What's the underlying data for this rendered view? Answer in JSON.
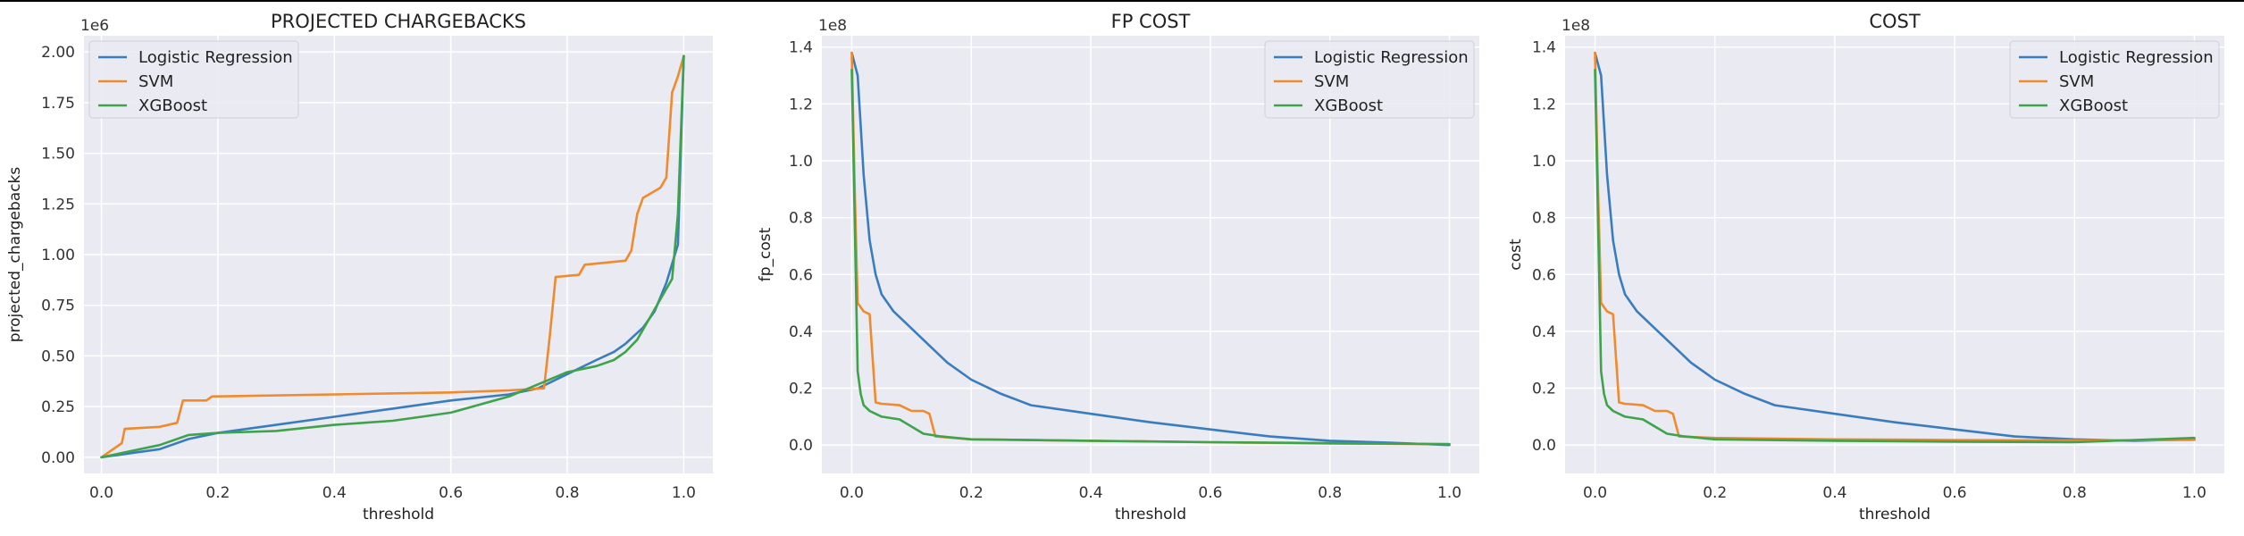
{
  "chart_data": [
    {
      "type": "line",
      "title": "PROJECTED CHARGEBACKS",
      "xlabel": "threshold",
      "ylabel": "projected_chargebacks",
      "offset_text": "1e6",
      "xlim": [
        -0.03,
        1.05
      ],
      "ylim": [
        -0.08,
        2.08
      ],
      "xticks": [
        0.0,
        0.2,
        0.4,
        0.6,
        0.8,
        1.0
      ],
      "xtick_labels": [
        "0.0",
        "0.2",
        "0.4",
        "0.6",
        "0.8",
        "1.0"
      ],
      "yticks": [
        0.0,
        0.25,
        0.5,
        0.75,
        1.0,
        1.25,
        1.5,
        1.75,
        2.0
      ],
      "ytick_labels": [
        "0.00",
        "0.25",
        "0.50",
        "0.75",
        "1.00",
        "1.25",
        "1.50",
        "1.75",
        "2.00"
      ],
      "grid": true,
      "legend_position": "top-left",
      "series": [
        {
          "name": "Logistic Regression",
          "color": "#3a7dbf",
          "x": [
            0,
            0.05,
            0.1,
            0.15,
            0.2,
            0.3,
            0.4,
            0.5,
            0.6,
            0.7,
            0.75,
            0.8,
            0.85,
            0.88,
            0.9,
            0.93,
            0.95,
            0.97,
            0.99,
            1.0
          ],
          "y": [
            0.0,
            0.02,
            0.04,
            0.09,
            0.12,
            0.16,
            0.2,
            0.24,
            0.28,
            0.31,
            0.34,
            0.41,
            0.48,
            0.52,
            0.56,
            0.64,
            0.72,
            0.86,
            1.05,
            1.98
          ]
        },
        {
          "name": "SVM",
          "color": "#f08a2c",
          "x": [
            0,
            0.02,
            0.035,
            0.04,
            0.1,
            0.13,
            0.14,
            0.18,
            0.19,
            0.4,
            0.6,
            0.7,
            0.76,
            0.77,
            0.78,
            0.82,
            0.83,
            0.9,
            0.91,
            0.92,
            0.93,
            0.96,
            0.97,
            0.98,
            0.99,
            1.0
          ],
          "y": [
            0.0,
            0.04,
            0.07,
            0.14,
            0.15,
            0.17,
            0.28,
            0.28,
            0.3,
            0.31,
            0.32,
            0.33,
            0.34,
            0.6,
            0.89,
            0.9,
            0.95,
            0.97,
            1.02,
            1.2,
            1.28,
            1.33,
            1.38,
            1.8,
            1.88,
            1.98
          ]
        },
        {
          "name": "XGBoost",
          "color": "#3ea34a",
          "x": [
            0,
            0.05,
            0.1,
            0.15,
            0.2,
            0.3,
            0.4,
            0.45,
            0.5,
            0.55,
            0.6,
            0.7,
            0.8,
            0.85,
            0.88,
            0.9,
            0.92,
            0.94,
            0.96,
            0.98,
            0.99,
            1.0
          ],
          "y": [
            0.0,
            0.03,
            0.06,
            0.11,
            0.12,
            0.13,
            0.16,
            0.17,
            0.18,
            0.2,
            0.22,
            0.3,
            0.42,
            0.45,
            0.48,
            0.52,
            0.58,
            0.68,
            0.78,
            0.88,
            1.2,
            1.98
          ]
        }
      ]
    },
    {
      "type": "line",
      "title": "FP COST",
      "xlabel": "threshold",
      "ylabel": "fp_cost",
      "offset_text": "1e8",
      "xlim": [
        -0.05,
        1.05
      ],
      "ylim": [
        -0.1,
        1.44
      ],
      "xticks": [
        0.0,
        0.2,
        0.4,
        0.6,
        0.8,
        1.0
      ],
      "xtick_labels": [
        "0.0",
        "0.2",
        "0.4",
        "0.6",
        "0.8",
        "1.0"
      ],
      "yticks": [
        0.0,
        0.2,
        0.4,
        0.6,
        0.8,
        1.0,
        1.2,
        1.4
      ],
      "ytick_labels": [
        "0.0",
        "0.2",
        "0.4",
        "0.6",
        "0.8",
        "1.0",
        "1.2",
        "1.4"
      ],
      "grid": true,
      "legend_position": "top-right",
      "series": [
        {
          "name": "Logistic Regression",
          "color": "#3a7dbf",
          "x": [
            0,
            0.01,
            0.02,
            0.03,
            0.04,
            0.05,
            0.07,
            0.1,
            0.13,
            0.16,
            0.2,
            0.25,
            0.3,
            0.4,
            0.5,
            0.6,
            0.7,
            0.8,
            0.9,
            1.0
          ],
          "y": [
            1.38,
            1.3,
            0.95,
            0.72,
            0.6,
            0.53,
            0.47,
            0.41,
            0.35,
            0.29,
            0.23,
            0.18,
            0.14,
            0.11,
            0.08,
            0.055,
            0.03,
            0.015,
            0.008,
            0.0
          ]
        },
        {
          "name": "SVM",
          "color": "#f08a2c",
          "x": [
            0,
            0.005,
            0.01,
            0.02,
            0.03,
            0.04,
            0.05,
            0.08,
            0.1,
            0.12,
            0.13,
            0.14,
            0.2,
            0.4,
            0.6,
            0.8,
            1.0
          ],
          "y": [
            1.38,
            0.9,
            0.5,
            0.47,
            0.46,
            0.15,
            0.145,
            0.14,
            0.12,
            0.12,
            0.11,
            0.03,
            0.02,
            0.015,
            0.01,
            0.005,
            0.003
          ]
        },
        {
          "name": "XGBoost",
          "color": "#3ea34a",
          "x": [
            0,
            0.01,
            0.015,
            0.02,
            0.03,
            0.05,
            0.08,
            0.1,
            0.12,
            0.15,
            0.2,
            0.4,
            0.6,
            0.8,
            1.0
          ],
          "y": [
            1.32,
            0.26,
            0.18,
            0.14,
            0.12,
            0.1,
            0.09,
            0.065,
            0.04,
            0.03,
            0.02,
            0.015,
            0.01,
            0.007,
            0.003
          ]
        }
      ]
    },
    {
      "type": "line",
      "title": "COST",
      "xlabel": "threshold",
      "ylabel": "cost",
      "offset_text": "1e8",
      "xlim": [
        -0.05,
        1.05
      ],
      "ylim": [
        -0.1,
        1.44
      ],
      "xticks": [
        0.0,
        0.2,
        0.4,
        0.6,
        0.8,
        1.0
      ],
      "xtick_labels": [
        "0.0",
        "0.2",
        "0.4",
        "0.6",
        "0.8",
        "1.0"
      ],
      "yticks": [
        0.0,
        0.2,
        0.4,
        0.6,
        0.8,
        1.0,
        1.2,
        1.4
      ],
      "ytick_labels": [
        "0.0",
        "0.2",
        "0.4",
        "0.6",
        "0.8",
        "1.0",
        "1.2",
        "1.4"
      ],
      "grid": true,
      "legend_position": "top-right",
      "series": [
        {
          "name": "Logistic Regression",
          "color": "#3a7dbf",
          "x": [
            0,
            0.01,
            0.02,
            0.03,
            0.04,
            0.05,
            0.07,
            0.1,
            0.13,
            0.16,
            0.2,
            0.25,
            0.3,
            0.4,
            0.5,
            0.6,
            0.7,
            0.8,
            0.9,
            1.0
          ],
          "y": [
            1.38,
            1.3,
            0.95,
            0.72,
            0.6,
            0.53,
            0.47,
            0.41,
            0.35,
            0.29,
            0.23,
            0.18,
            0.14,
            0.11,
            0.08,
            0.055,
            0.03,
            0.02,
            0.015,
            0.02
          ]
        },
        {
          "name": "SVM",
          "color": "#f08a2c",
          "x": [
            0,
            0.005,
            0.01,
            0.02,
            0.03,
            0.04,
            0.05,
            0.08,
            0.1,
            0.12,
            0.13,
            0.14,
            0.2,
            0.4,
            0.6,
            0.8,
            1.0
          ],
          "y": [
            1.38,
            0.9,
            0.5,
            0.47,
            0.46,
            0.15,
            0.145,
            0.14,
            0.12,
            0.12,
            0.11,
            0.03,
            0.025,
            0.02,
            0.018,
            0.016,
            0.018
          ]
        },
        {
          "name": "XGBoost",
          "color": "#3ea34a",
          "x": [
            0,
            0.01,
            0.015,
            0.02,
            0.03,
            0.05,
            0.08,
            0.1,
            0.12,
            0.15,
            0.2,
            0.4,
            0.6,
            0.8,
            1.0
          ],
          "y": [
            1.32,
            0.26,
            0.18,
            0.14,
            0.12,
            0.1,
            0.09,
            0.065,
            0.04,
            0.03,
            0.02,
            0.015,
            0.012,
            0.01,
            0.025
          ]
        }
      ]
    }
  ]
}
